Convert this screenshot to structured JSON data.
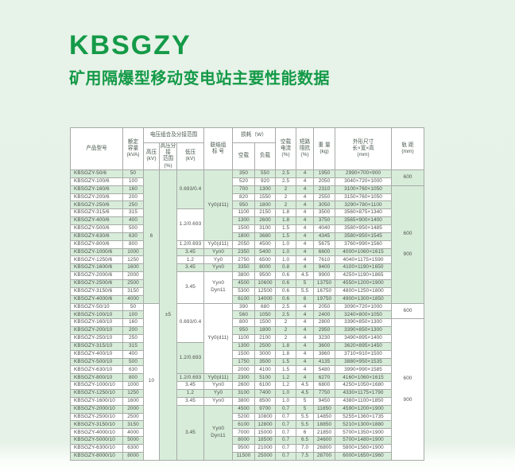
{
  "title": "KBSGZY",
  "subtitle": "矿用隔爆型移动变电站主要性能数据",
  "colors": {
    "accent_green": "#149a48",
    "row_band_green": "#d8ecda",
    "page_background": "#e6f1e7",
    "table_border": "#a6aba6"
  },
  "table": {
    "header": {
      "model": "产品型号",
      "kva": "额定\n容量\n(kVA)",
      "voltage_group": "电压组合及分接范围",
      "hv": "高压\n(kV)",
      "tap": "高压分接\n范围(%)",
      "lv": "低压\n(kV)",
      "conn": "联结组\n标  号",
      "loss": "损耗（W）",
      "noload": "空载",
      "load": "负载",
      "current": "空载\n电流\n(%)",
      "impedance": "短路\n阻抗\n(%)",
      "weight": "重 量\n(kg)",
      "dims": "外形尺寸\n长×宽×高\n(mm)",
      "gauge": "轨 距\n(mm)"
    },
    "rows": [
      {
        "model": "KBSGZY-50/6",
        "kva": "50",
        "noload": "350",
        "load": "550",
        "current": "2.5",
        "impedance": "4",
        "weight": "1950",
        "dims": "2990×700×900"
      },
      {
        "model": "KBSGZY-100/6",
        "kva": "100",
        "noload": "520",
        "load": "920",
        "current": "2.5",
        "impedance": "4",
        "weight": "2050",
        "dims": "3040×720×1000"
      },
      {
        "model": "KBSGZY-160/6",
        "kva": "160",
        "noload": "700",
        "load": "1300",
        "current": "2",
        "impedance": "4",
        "weight": "2310",
        "dims": "3100×760×1050"
      },
      {
        "model": "KBSGZY-200/6",
        "kva": "200",
        "noload": "820",
        "load": "1550",
        "current": "2",
        "impedance": "4",
        "weight": "2550",
        "dims": "3150×760×1050"
      },
      {
        "model": "KBSGZY-250/6",
        "kva": "250",
        "noload": "950",
        "load": "1800",
        "current": "2",
        "impedance": "4",
        "weight": "3050",
        "dims": "3290×780×1100"
      },
      {
        "model": "KBSGZY-315/6",
        "kva": "315",
        "noload": "1100",
        "load": "2150",
        "current": "1.8",
        "impedance": "4",
        "weight": "3500",
        "dims": "3560×875×1340"
      },
      {
        "model": "KBSGZY-400/6",
        "kva": "400",
        "noload": "1300",
        "load": "2600",
        "current": "1.8",
        "impedance": "4",
        "weight": "3750",
        "dims": "3565×900×1400"
      },
      {
        "model": "KBSGZY-500/6",
        "kva": "500",
        "noload": "1500",
        "load": "3100",
        "current": "1.5",
        "impedance": "4",
        "weight": "4040",
        "dims": "3580×950×1485"
      },
      {
        "model": "KBSGZY-630/6",
        "kva": "630",
        "noload": "1800",
        "load": "3680",
        "current": "1.5",
        "impedance": "4",
        "weight": "4345",
        "dims": "3580×950×1545"
      },
      {
        "model": "KBSGZY-800/6",
        "kva": "800",
        "noload": "2050",
        "load": "4500",
        "current": "1.0",
        "impedance": "4",
        "weight": "5675",
        "dims": "3760×990×1560"
      },
      {
        "model": "KBSGZY-1000/6",
        "kva": "1000",
        "noload": "2350",
        "load": "5400",
        "current": "1.0",
        "impedance": "4",
        "weight": "6600",
        "dims": "4000×1060×1615"
      },
      {
        "model": "KBSGZY-1250/6",
        "kva": "1250",
        "noload": "2750",
        "load": "6500",
        "current": "1.0",
        "impedance": "4",
        "weight": "7610",
        "dims": "4040×1175×1590"
      },
      {
        "model": "KBSGZY-1600/6",
        "kva": "1600",
        "noload": "3350",
        "load": "8000",
        "current": "0.8",
        "impedance": "4",
        "weight": "9400",
        "dims": "4100×1190×1650"
      },
      {
        "model": "KBSGZY-2000/6",
        "kva": "2000",
        "noload": "3800",
        "load": "9500",
        "current": "0.6",
        "impedance": "4.5",
        "weight": "9900",
        "dims": "4250×1190×1865"
      },
      {
        "model": "KBSGZY-2500/6",
        "kva": "2500",
        "noload": "4500",
        "load": "10600",
        "current": "0.6",
        "impedance": "5",
        "weight": "13750",
        "dims": "4550×1200×1900"
      },
      {
        "model": "KBSGZY-3150/6",
        "kva": "3150",
        "noload": "5300",
        "load": "12500",
        "current": "0.6",
        "impedance": "5.5",
        "weight": "16750",
        "dims": "4800×1250×1800"
      },
      {
        "model": "KBSGZY-4000/6",
        "kva": "4000",
        "noload": "6100",
        "load": "14000",
        "current": "0.6",
        "impedance": "6",
        "weight": "19750",
        "dims": "4900×1300×1850"
      },
      {
        "model": "KBSGZY-50/10",
        "kva": "50",
        "noload": "390",
        "load": "680",
        "current": "2.5",
        "impedance": "4",
        "weight": "2050",
        "dims": "3090×720×1000"
      },
      {
        "model": "KBSGZY-100/10",
        "kva": "100",
        "noload": "560",
        "load": "1050",
        "current": "2.5",
        "impedance": "4",
        "weight": "2400",
        "dims": "3240×800×1050"
      },
      {
        "model": "KBSGZY-160/10",
        "kva": "160",
        "noload": "800",
        "load": "1500",
        "current": "2",
        "impedance": "4",
        "weight": "2800",
        "dims": "3390×850×1300"
      },
      {
        "model": "KBSGZY-200/10",
        "kva": "200",
        "noload": "950",
        "load": "1800",
        "current": "2",
        "impedance": "4",
        "weight": "2950",
        "dims": "3390×850×1300"
      },
      {
        "model": "KBSGZY-250/10",
        "kva": "250",
        "noload": "1100",
        "load": "2100",
        "current": "2",
        "impedance": "4",
        "weight": "3230",
        "dims": "3490×895×1400"
      },
      {
        "model": "KBSGZY-315/10",
        "kva": "315",
        "noload": "1300",
        "load": "2500",
        "current": "1.8",
        "impedance": "4",
        "weight": "3600",
        "dims": "3620×895×1450"
      },
      {
        "model": "KBSGZY-400/10",
        "kva": "400",
        "noload": "1500",
        "load": "3000",
        "current": "1.8",
        "impedance": "4",
        "weight": "3860",
        "dims": "3710×910×1500"
      },
      {
        "model": "KBSGZY-500/10",
        "kva": "500",
        "noload": "1750",
        "load": "3500",
        "current": "1.5",
        "impedance": "4",
        "weight": "4135",
        "dims": "3880×950×1535"
      },
      {
        "model": "KBSGZY-630/10",
        "kva": "630",
        "noload": "2000",
        "load": "4100",
        "current": "1.5",
        "impedance": "4",
        "weight": "5480",
        "dims": "3990×990×1585"
      },
      {
        "model": "KBSGZY-800/10",
        "kva": "800",
        "noload": "2300",
        "load": "5100",
        "current": "1.2",
        "impedance": "4",
        "weight": "6270",
        "dims": "4160×1060×1615"
      },
      {
        "model": "KBSGZY-1000/10",
        "kva": "1000",
        "noload": "2600",
        "load": "6100",
        "current": "1.2",
        "impedance": "4.5",
        "weight": "6800",
        "dims": "4250×1050×1680"
      },
      {
        "model": "KBSGZY-1250/10",
        "kva": "1250",
        "noload": "3100",
        "load": "7400",
        "current": "1.0",
        "impedance": "4.5",
        "weight": "7750",
        "dims": "4330×1175×1790"
      },
      {
        "model": "KBSGZY-1600/10",
        "kva": "1600",
        "noload": "3800",
        "load": "8500",
        "current": "1.0",
        "impedance": "5",
        "weight": "9450",
        "dims": "4380×1100×1850"
      },
      {
        "model": "KBSGZY-2000/10",
        "kva": "2000",
        "noload": "4500",
        "load": "9700",
        "current": "0.7",
        "impedance": "5",
        "weight": "11850",
        "dims": "4590×1200×1900"
      },
      {
        "model": "KBSGZY-2500/10",
        "kva": "2500",
        "noload": "5200",
        "load": "10800",
        "current": "0.7",
        "impedance": "5.5",
        "weight": "14850",
        "dims": "5255×1360×1735"
      },
      {
        "model": "KBSGZY-3150/10",
        "kva": "3150",
        "noload": "6100",
        "load": "12800",
        "current": "0.7",
        "impedance": "5.5",
        "weight": "18850",
        "dims": "5210×1300×1880"
      },
      {
        "model": "KBSGZY-4000/10",
        "kva": "4000",
        "noload": "7000",
        "load": "15000",
        "current": "0.7",
        "impedance": "6",
        "weight": "21850",
        "dims": "5700×1350×1900"
      },
      {
        "model": "KBSGZY-5000/10",
        "kva": "5000",
        "noload": "8000",
        "load": "18500",
        "current": "0.7",
        "impedance": "6.5",
        "weight": "24600",
        "dims": "5700×1480×1900"
      },
      {
        "model": "KBSGZY-6300/10",
        "kva": "6300",
        "noload": "9500",
        "load": "21000",
        "current": "0.7",
        "impedance": "7.0",
        "weight": "26800",
        "dims": "5800×1560×1900"
      },
      {
        "model": "KBSGZY-8000/10",
        "kva": "8000",
        "noload": "11500",
        "load": "25000",
        "current": "0.7",
        "impedance": "7.5",
        "weight": "28700",
        "dims": "6000×1650×1960"
      }
    ],
    "merged_cells": {
      "hv": [
        {
          "start": 0,
          "rows": 17,
          "text": "6"
        },
        {
          "start": 17,
          "rows": 20,
          "text": "10"
        }
      ],
      "tap": [
        {
          "start": 0,
          "rows": 37,
          "text": "±5"
        }
      ],
      "lv": [
        {
          "start": 0,
          "rows": 5,
          "text": "0.693/0.4"
        },
        {
          "start": 5,
          "rows": 4,
          "text": "1.2/0.693"
        },
        {
          "start": 9,
          "rows": 1,
          "text": "1.2/0.693"
        },
        {
          "start": 10,
          "rows": 1,
          "text": "3.45"
        },
        {
          "start": 11,
          "rows": 1,
          "text": "1.2"
        },
        {
          "start": 12,
          "rows": 1,
          "text": "3.45"
        },
        {
          "start": 13,
          "rows": 4,
          "text": "3.45"
        },
        {
          "start": 17,
          "rows": 5,
          "text": "0.693/0.4"
        },
        {
          "start": 22,
          "rows": 4,
          "text": "1.2/0.693"
        },
        {
          "start": 26,
          "rows": 1,
          "text": "1.2/0.693"
        },
        {
          "start": 27,
          "rows": 1,
          "text": "3.45"
        },
        {
          "start": 28,
          "rows": 1,
          "text": "1.2"
        },
        {
          "start": 29,
          "rows": 1,
          "text": "3.45"
        },
        {
          "start": 30,
          "rows": 7,
          "text": "3.45"
        }
      ],
      "conn": [
        {
          "start": 0,
          "rows": 9,
          "text": "Yy0(d11)"
        },
        {
          "start": 9,
          "rows": 1,
          "text": "Yy0(d11)"
        },
        {
          "start": 10,
          "rows": 1,
          "text": "Yyn0"
        },
        {
          "start": 11,
          "rows": 1,
          "text": "Yy0"
        },
        {
          "start": 12,
          "rows": 1,
          "text": "Yyn0"
        },
        {
          "start": 13,
          "rows": 4,
          "lines": [
            "Yyn0",
            "Dyn11"
          ]
        },
        {
          "start": 17,
          "rows": 9,
          "text": "Yy0(d11)"
        },
        {
          "start": 26,
          "rows": 1,
          "text": "Yy0(d11)"
        },
        {
          "start": 27,
          "rows": 1,
          "text": "Yyn0"
        },
        {
          "start": 28,
          "rows": 1,
          "text": "Yy0"
        },
        {
          "start": 29,
          "rows": 1,
          "text": "Yyn0"
        },
        {
          "start": 30,
          "rows": 7,
          "lines": [
            "Yyn0",
            "Dyn11"
          ]
        }
      ],
      "gauge": [
        {
          "start": 0,
          "rows": 2,
          "text": "600"
        },
        {
          "start": 2,
          "rows": 15,
          "lines": [
            "600",
            "900"
          ]
        },
        {
          "start": 17,
          "rows": 2,
          "text": "600"
        },
        {
          "start": 19,
          "rows": 18,
          "lines": [
            "600",
            "900"
          ]
        }
      ]
    }
  }
}
